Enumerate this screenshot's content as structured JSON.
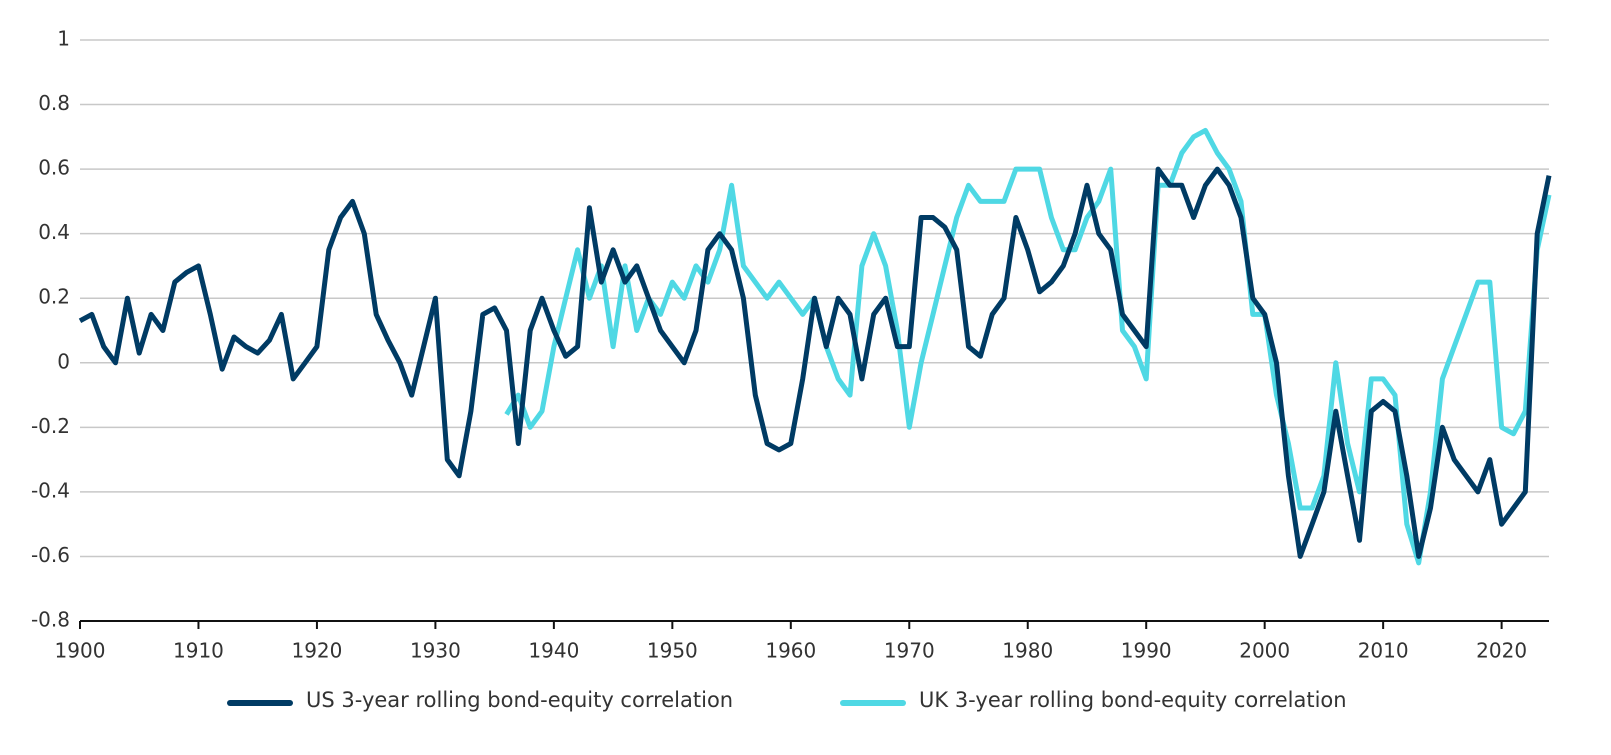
{
  "chart_data": {
    "type": "line",
    "x": [
      1900,
      1901,
      1902,
      1903,
      1904,
      1905,
      1906,
      1907,
      1908,
      1909,
      1910,
      1911,
      1912,
      1913,
      1914,
      1915,
      1916,
      1917,
      1918,
      1919,
      1920,
      1921,
      1922,
      1923,
      1924,
      1925,
      1926,
      1927,
      1928,
      1929,
      1930,
      1931,
      1932,
      1933,
      1934,
      1935,
      1936,
      1937,
      1938,
      1939,
      1940,
      1941,
      1942,
      1943,
      1944,
      1945,
      1946,
      1947,
      1948,
      1949,
      1950,
      1951,
      1952,
      1953,
      1954,
      1955,
      1956,
      1957,
      1958,
      1959,
      1960,
      1961,
      1962,
      1963,
      1964,
      1965,
      1966,
      1967,
      1968,
      1969,
      1970,
      1971,
      1972,
      1973,
      1974,
      1975,
      1976,
      1977,
      1978,
      1979,
      1980,
      1981,
      1982,
      1983,
      1984,
      1985,
      1986,
      1987,
      1988,
      1989,
      1990,
      1991,
      1992,
      1993,
      1994,
      1995,
      1996,
      1997,
      1998,
      1999,
      2000,
      2001,
      2002,
      2003,
      2004,
      2005,
      2006,
      2007,
      2008,
      2009,
      2010,
      2011,
      2012,
      2013,
      2014,
      2015,
      2016,
      2017,
      2018,
      2019,
      2020,
      2021,
      2022,
      2023,
      2024
    ],
    "series": [
      {
        "name": "US 3-year rolling bond-equity correlation",
        "color": "#003b64",
        "values": [
          0.13,
          0.15,
          0.05,
          0.0,
          0.2,
          0.03,
          0.15,
          0.1,
          0.25,
          0.28,
          0.3,
          0.15,
          -0.02,
          0.08,
          0.05,
          0.03,
          0.07,
          0.15,
          -0.05,
          0.0,
          0.05,
          0.35,
          0.45,
          0.5,
          0.4,
          0.15,
          0.07,
          0.0,
          -0.1,
          0.05,
          0.2,
          -0.3,
          -0.35,
          -0.15,
          0.15,
          0.17,
          0.1,
          -0.25,
          0.1,
          0.2,
          0.1,
          0.02,
          0.05,
          0.48,
          0.25,
          0.35,
          0.25,
          0.3,
          0.2,
          0.1,
          0.05,
          0.0,
          0.1,
          0.35,
          0.4,
          0.35,
          0.2,
          -0.1,
          -0.25,
          -0.27,
          -0.25,
          -0.05,
          0.2,
          0.05,
          0.2,
          0.15,
          -0.05,
          0.15,
          0.2,
          0.05,
          0.05,
          0.45,
          0.45,
          0.42,
          0.35,
          0.05,
          0.02,
          0.15,
          0.2,
          0.45,
          0.35,
          0.22,
          0.25,
          0.3,
          0.4,
          0.55,
          0.4,
          0.35,
          0.15,
          0.1,
          0.05,
          0.6,
          0.55,
          0.55,
          0.45,
          0.55,
          0.6,
          0.55,
          0.45,
          0.2,
          0.15,
          0.0,
          -0.35,
          -0.6,
          -0.5,
          -0.4,
          -0.15,
          -0.35,
          -0.55,
          -0.15,
          -0.12,
          -0.15,
          -0.35,
          -0.6,
          -0.45,
          -0.2,
          -0.3,
          -0.35,
          -0.4,
          -0.3,
          -0.5,
          -0.45,
          -0.4,
          0.4,
          0.58
        ]
      },
      {
        "name": "UK 3-year rolling bond-equity correlation",
        "color": "#4fd8e4",
        "values": [
          null,
          null,
          null,
          null,
          null,
          null,
          null,
          null,
          null,
          null,
          null,
          null,
          null,
          null,
          null,
          null,
          null,
          null,
          null,
          null,
          null,
          null,
          null,
          null,
          null,
          null,
          null,
          null,
          null,
          null,
          null,
          null,
          null,
          null,
          null,
          null,
          -0.16,
          -0.1,
          -0.2,
          -0.15,
          0.05,
          0.2,
          0.35,
          0.2,
          0.3,
          0.05,
          0.3,
          0.1,
          0.2,
          0.15,
          0.25,
          0.2,
          0.3,
          0.25,
          0.35,
          0.55,
          0.3,
          0.25,
          0.2,
          0.25,
          0.2,
          0.15,
          0.2,
          0.05,
          -0.05,
          -0.1,
          0.3,
          0.4,
          0.3,
          0.1,
          -0.2,
          0.0,
          0.15,
          0.3,
          0.45,
          0.55,
          0.5,
          0.5,
          0.5,
          0.6,
          0.6,
          0.6,
          0.45,
          0.35,
          0.35,
          0.45,
          0.5,
          0.6,
          0.1,
          0.05,
          -0.05,
          0.55,
          0.55,
          0.65,
          0.7,
          0.72,
          0.65,
          0.6,
          0.5,
          0.15,
          0.15,
          -0.1,
          -0.25,
          -0.45,
          -0.45,
          -0.35,
          0.0,
          -0.25,
          -0.4,
          -0.05,
          -0.05,
          -0.1,
          -0.5,
          -0.62,
          -0.4,
          -0.05,
          0.05,
          0.15,
          0.25,
          0.25,
          -0.2,
          -0.22,
          -0.15,
          0.35,
          0.52
        ]
      }
    ],
    "xlim": [
      1900,
      2024
    ],
    "xticks": [
      1900,
      1910,
      1920,
      1930,
      1940,
      1950,
      1960,
      1970,
      1980,
      1990,
      2000,
      2010,
      2020
    ],
    "ylim": [
      -0.8,
      1
    ],
    "yticks": [
      -0.8,
      -0.6,
      -0.4,
      -0.2,
      0,
      0.2,
      0.4,
      0.6,
      0.8,
      1
    ],
    "grid": true,
    "legend": "bottom"
  }
}
